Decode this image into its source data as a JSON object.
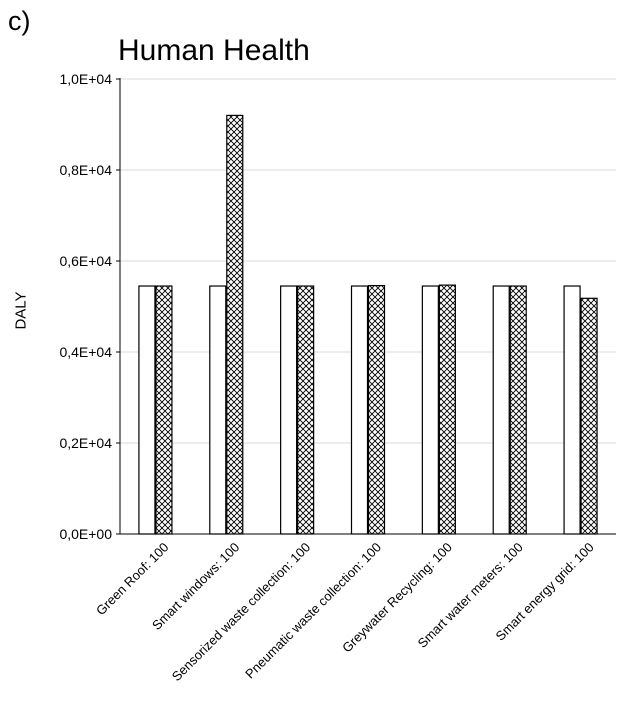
{
  "panel_label": "c)",
  "chart_data": {
    "type": "bar",
    "title": "Human Health",
    "xlabel": "",
    "ylabel": "DALY",
    "ylim": [
      0,
      10000
    ],
    "yticks": [
      0,
      2000,
      4000,
      6000,
      8000,
      10000
    ],
    "ytick_labels": [
      "0,0E+00",
      "0,2E+04",
      "0,4E+04",
      "0,6E+04",
      "0,8E+04",
      "1,0E+04"
    ],
    "grid": true,
    "categories": [
      "Green Roof: 100",
      "Smart windows: 100",
      "Sensorized waste collection: 100",
      "Pneumatic waste collection: 100",
      "Greywater Recycling: 100",
      "Smart water meters: 100",
      "Smart energy grid: 100"
    ],
    "series": [
      {
        "fill": "#ffffff",
        "pattern": "none",
        "values": [
          5450,
          5450,
          5450,
          5450,
          5450,
          5450,
          5450
        ]
      },
      {
        "fill": "#ffffff",
        "pattern": "crosshatch",
        "values": [
          5450,
          9200,
          5450,
          5460,
          5470,
          5450,
          5180
        ]
      }
    ]
  }
}
